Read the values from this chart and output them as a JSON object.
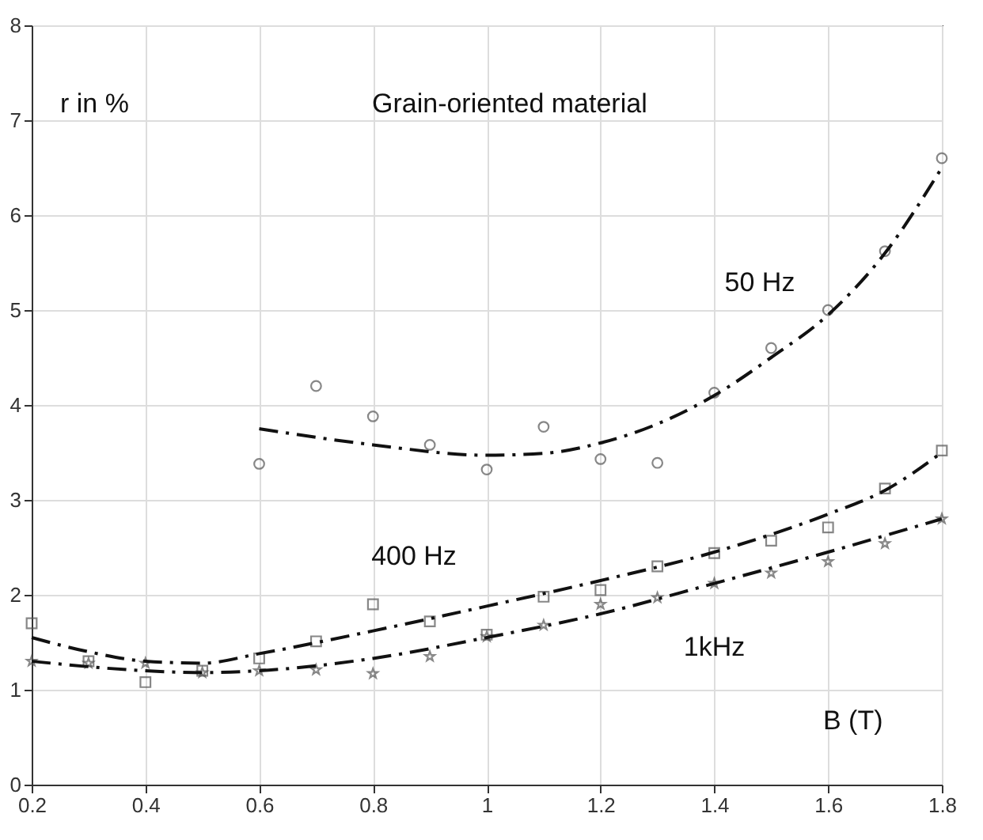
{
  "chart_data": {
    "type": "scatter",
    "title": "Grain-oriented material",
    "xlabel": "B (T)",
    "ylabel": "r in %",
    "xlim": [
      0.2,
      1.8
    ],
    "xticks": [
      0.2,
      0.4,
      0.6,
      0.8,
      1,
      1.2,
      1.4,
      1.6,
      1.8
    ],
    "ylim": [
      0,
      8
    ],
    "yticks": [
      0,
      1,
      2,
      3,
      4,
      5,
      6,
      7,
      8
    ],
    "grid": true,
    "series": [
      {
        "marker": "circle",
        "color": "#555555",
        "x": [
          0.6,
          0.7,
          0.8,
          0.9,
          1.0,
          1.1,
          1.2,
          1.3,
          1.4,
          1.5,
          1.6,
          1.7,
          1.8
        ],
        "values": [
          3.38,
          4.2,
          3.88,
          3.58,
          3.32,
          3.77,
          3.43,
          3.39,
          4.13,
          4.6,
          5.0,
          5.62,
          6.6
        ]
      },
      {
        "marker": "square",
        "color": "#555555",
        "x": [
          0.2,
          0.3,
          0.4,
          0.5,
          0.6,
          0.7,
          0.8,
          0.9,
          1.0,
          1.1,
          1.2,
          1.3,
          1.4,
          1.5,
          1.6,
          1.7,
          1.8
        ],
        "values": [
          1.7,
          1.3,
          1.08,
          1.2,
          1.33,
          1.51,
          1.9,
          1.72,
          1.58,
          1.98,
          2.05,
          2.3,
          2.44,
          2.57,
          2.71,
          3.12,
          3.52
        ]
      },
      {
        "marker": "star",
        "color": "#555555",
        "x": [
          0.2,
          0.3,
          0.4,
          0.5,
          0.6,
          0.7,
          0.8,
          0.9,
          1.0,
          1.1,
          1.2,
          1.3,
          1.4,
          1.5,
          1.6,
          1.7,
          1.8
        ],
        "values": [
          1.3,
          1.28,
          1.28,
          1.18,
          1.2,
          1.21,
          1.17,
          1.35,
          1.56,
          1.68,
          1.9,
          1.97,
          2.12,
          2.23,
          2.35,
          2.54,
          2.8
        ]
      },
      {
        "type": "line",
        "line_style": "dashed",
        "color": "#111111",
        "x": [
          0.6,
          0.8,
          1.0,
          1.1,
          1.2,
          1.3,
          1.4,
          1.5,
          1.6,
          1.7,
          1.8
        ],
        "values": [
          3.75,
          3.58,
          3.47,
          3.49,
          3.6,
          3.8,
          4.1,
          4.5,
          4.95,
          5.6,
          6.5
        ]
      },
      {
        "type": "line",
        "line_style": "dashed",
        "color": "#111111",
        "x": [
          0.2,
          0.3,
          0.4,
          0.5,
          0.6,
          0.8,
          1.0,
          1.2,
          1.4,
          1.6,
          1.7,
          1.8
        ],
        "values": [
          1.55,
          1.4,
          1.3,
          1.28,
          1.38,
          1.62,
          1.88,
          2.15,
          2.45,
          2.85,
          3.1,
          3.5
        ]
      },
      {
        "type": "line",
        "line_style": "dashed",
        "color": "#111111",
        "x": [
          0.2,
          0.4,
          0.5,
          0.6,
          0.8,
          1.0,
          1.2,
          1.4,
          1.6,
          1.8
        ],
        "values": [
          1.3,
          1.2,
          1.18,
          1.2,
          1.33,
          1.55,
          1.8,
          2.12,
          2.45,
          2.8
        ]
      }
    ],
    "annotations": [
      "50 Hz",
      "400 Hz",
      "1kHz"
    ]
  }
}
